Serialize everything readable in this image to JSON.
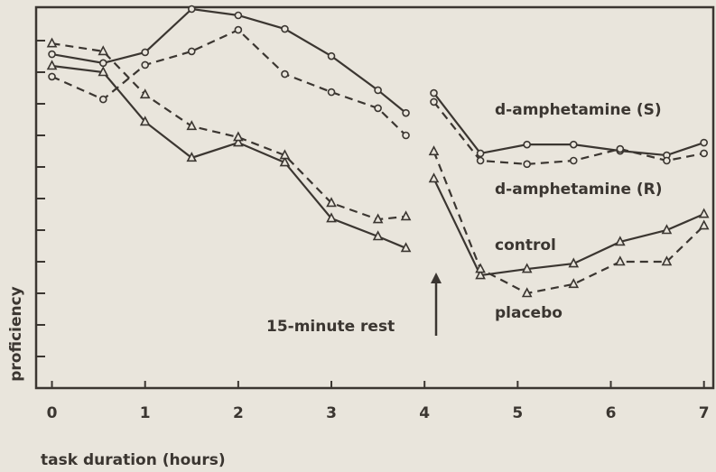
{
  "chart_data": {
    "type": "line",
    "x_label": "task duration (hours)",
    "y_label": "proficiency",
    "annotation": "15-minute rest",
    "x": [
      0,
      0.55,
      1,
      1.5,
      2,
      2.5,
      3,
      3.5,
      3.8,
      3.95,
      4.1,
      4.6,
      5.1,
      5.6,
      6.1,
      6.6,
      7
    ],
    "xlim": [
      -0.17,
      7.1
    ],
    "xticks": [
      0,
      1,
      2,
      3,
      4,
      5,
      6,
      7
    ],
    "ylim": [
      0,
      12
    ],
    "yticks": [
      1,
      2,
      3,
      4,
      5,
      6,
      7,
      8,
      9,
      10,
      11
    ],
    "series": [
      {
        "name": "d-amphetamine (S)",
        "color": "#3b3631",
        "dash": false,
        "marker": "circle",
        "values": [
          10.57,
          10.29,
          10.63,
          12.0,
          11.8,
          11.37,
          10.51,
          9.43,
          8.71,
          null,
          9.34,
          7.43,
          7.71,
          7.71,
          7.51,
          7.37,
          7.77
        ]
      },
      {
        "name": "d-amphetamine (R)",
        "color": "#3b3631",
        "dash": true,
        "marker": "circle",
        "values": [
          9.86,
          9.14,
          10.23,
          10.66,
          11.34,
          9.94,
          9.37,
          8.86,
          8.0,
          null,
          9.06,
          7.2,
          7.09,
          7.2,
          7.57,
          7.2,
          7.43
        ]
      },
      {
        "name": "control",
        "color": "#3b3631",
        "dash": false,
        "marker": "triangle",
        "values": [
          10.2,
          10.0,
          8.43,
          7.29,
          7.77,
          7.14,
          5.37,
          4.8,
          4.43,
          null,
          6.63,
          3.57,
          3.77,
          3.94,
          4.63,
          5.0,
          5.51
        ]
      },
      {
        "name": "placebo",
        "color": "#3b3631",
        "dash": true,
        "marker": "triangle",
        "values": [
          10.91,
          10.66,
          9.29,
          8.29,
          7.94,
          7.37,
          5.86,
          5.34,
          5.43,
          null,
          7.49,
          3.77,
          3.0,
          3.29,
          4.0,
          4.0,
          5.14
        ]
      }
    ]
  }
}
